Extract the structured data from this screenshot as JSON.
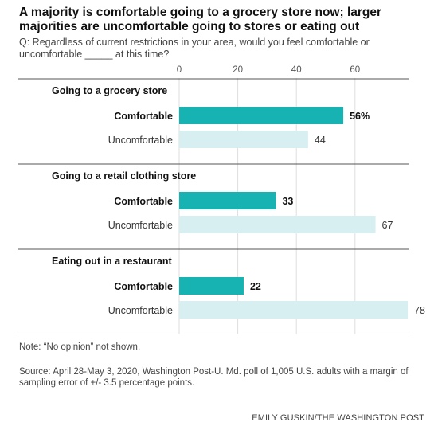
{
  "title": "A majority is comfortable going to a grocery store now; larger majorities are uncomfortable going to stores or eating out",
  "question": "Q: Regardless of current restrictions in your area, would you feel comfortable or uncomfortable _____ at this time?",
  "note": "Note: “No opinion” not shown.",
  "source": "Source: April 28-May 3, 2020, Washington Post-U. Md. poll of 1,005 U.S. adults with a margin of sampling error of +/- 3.5 percentage points.",
  "credit": "EMILY GUSKIN/THE WASHINGTON POST",
  "colors": {
    "comfortable": "#17b3b3",
    "uncomfortable": "#d7eff1"
  },
  "chart_data": {
    "type": "bar",
    "orientation": "horizontal",
    "xlim": [
      0,
      78
    ],
    "ticks": [
      "0",
      "20",
      "40",
      "60"
    ],
    "groups": [
      {
        "label": "Going to a grocery store",
        "bars": [
          {
            "label": "Comfortable",
            "value": 56,
            "value_label": "56%"
          },
          {
            "label": "Uncomfortable",
            "value": 44,
            "value_label": "44"
          }
        ]
      },
      {
        "label": "Going to a retail clothing store",
        "bars": [
          {
            "label": "Comfortable",
            "value": 33,
            "value_label": "33"
          },
          {
            "label": "Uncomfortable",
            "value": 67,
            "value_label": "67"
          }
        ]
      },
      {
        "label": "Eating out in a restaurant",
        "bars": [
          {
            "label": "Comfortable",
            "value": 22,
            "value_label": "22"
          },
          {
            "label": "Uncomfortable",
            "value": 78,
            "value_label": "78"
          }
        ]
      }
    ]
  }
}
